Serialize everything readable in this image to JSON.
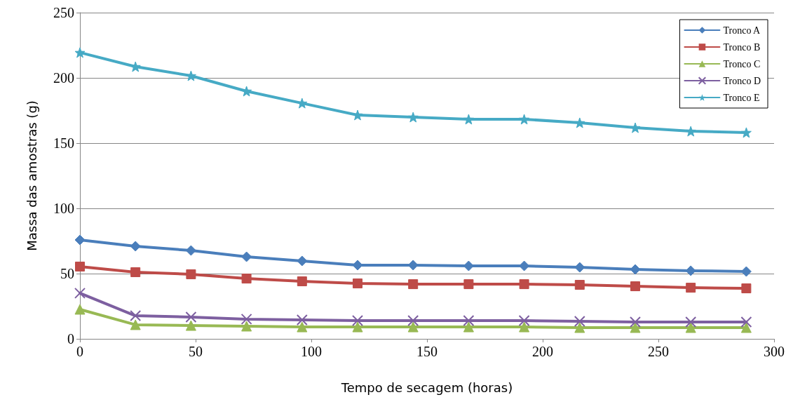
{
  "chart_data": {
    "type": "line",
    "xlabel": "Tempo de secagem (horas)",
    "ylabel": "Massa das amostras (g)",
    "x": [
      0,
      24,
      48,
      72,
      96,
      120,
      144,
      168,
      192,
      216,
      240,
      264,
      288
    ],
    "xlim": [
      0,
      300
    ],
    "xticks": [
      0,
      50,
      100,
      150,
      200,
      250,
      300
    ],
    "ylim": [
      0,
      250
    ],
    "yticks": [
      0,
      50,
      100,
      150,
      200,
      250
    ],
    "grid": "y",
    "legend": "top right",
    "line_style": "solid",
    "series": [
      {
        "name": "Tronco A",
        "color": "#4a7ebb",
        "marker": "diamond",
        "values": [
          75.8,
          71,
          67.7,
          62.9,
          59.7,
          56.5,
          56.5,
          55.9,
          55.9,
          54.8,
          53.2,
          52.2,
          51.6
        ]
      },
      {
        "name": "Tronco B",
        "color": "#be4b48",
        "marker": "square",
        "values": [
          55.4,
          51.1,
          49.5,
          46.2,
          44.1,
          42.5,
          41.9,
          41.9,
          41.9,
          41.4,
          40.3,
          39.2,
          38.7
        ]
      },
      {
        "name": "Tronco C",
        "color": "#98b954",
        "marker": "triangle",
        "values": [
          22.6,
          10.8,
          10.2,
          9.7,
          9.1,
          9.1,
          9.1,
          9.1,
          9.1,
          8.6,
          8.6,
          8.6,
          8.6
        ]
      },
      {
        "name": "Tronco D",
        "color": "#7d5fa0",
        "marker": "cross",
        "values": [
          35,
          17.7,
          16.7,
          15.1,
          14.5,
          14,
          14,
          14,
          14,
          13.4,
          12.9,
          12.9,
          12.9
        ]
      },
      {
        "name": "Tronco E",
        "color": "#46aac5",
        "marker": "star",
        "values": [
          219.4,
          208.6,
          201.6,
          189.8,
          180.6,
          171.5,
          169.9,
          168.3,
          168.3,
          165.6,
          161.8,
          159.1,
          158.1
        ]
      }
    ]
  }
}
